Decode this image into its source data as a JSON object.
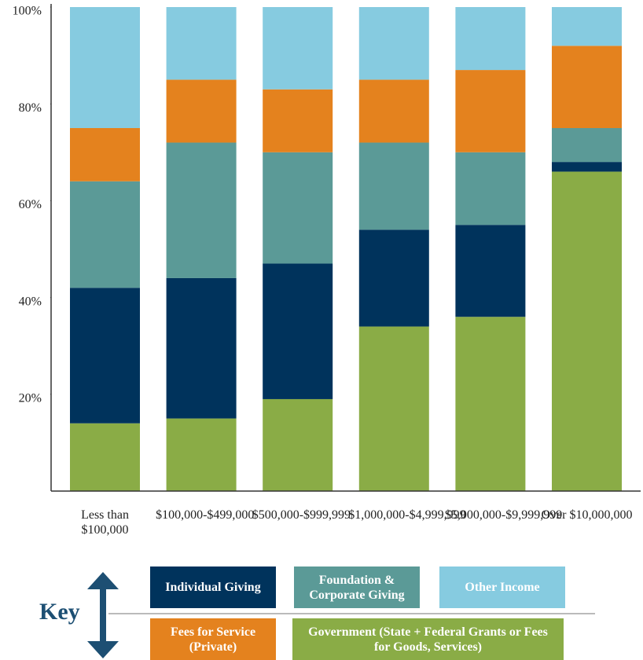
{
  "chart_data": {
    "type": "stacked_bar",
    "categories": [
      "Less than $100,000",
      "$100,000-$499,000",
      "$500,000-$999,999",
      "$1,000,000-$4,999,999",
      "$5,000,000-$9,999,999",
      "Over $10,000,000"
    ],
    "series": [
      {
        "name": "Government (State + Federal Grants or Fees for Goods, Services)",
        "color": "#8aac46",
        "values": [
          14,
          15,
          19,
          34,
          36,
          66
        ]
      },
      {
        "name": "Individual Giving",
        "color": "#00335c",
        "values": [
          28,
          29,
          28,
          20,
          19,
          2
        ]
      },
      {
        "name": "Foundation & Corporate Giving",
        "color": "#5b9a97",
        "values": [
          22,
          28,
          23,
          18,
          15,
          7
        ]
      },
      {
        "name": "Fees for Service (Private)",
        "color": "#e4821e",
        "values": [
          11,
          13,
          13,
          13,
          17,
          17
        ]
      },
      {
        "name": "Other Income",
        "color": "#86cbe0",
        "values": [
          25,
          15,
          17,
          15,
          13,
          8
        ]
      }
    ],
    "ylim": [
      0,
      100
    ],
    "yticks": [
      {
        "value": 20,
        "label": "20%"
      },
      {
        "value": 40,
        "label": "40%"
      },
      {
        "value": 60,
        "label": "60%"
      },
      {
        "value": 80,
        "label": "80%"
      },
      {
        "value": 100,
        "label": "100%"
      }
    ],
    "legend_title": "Key"
  }
}
